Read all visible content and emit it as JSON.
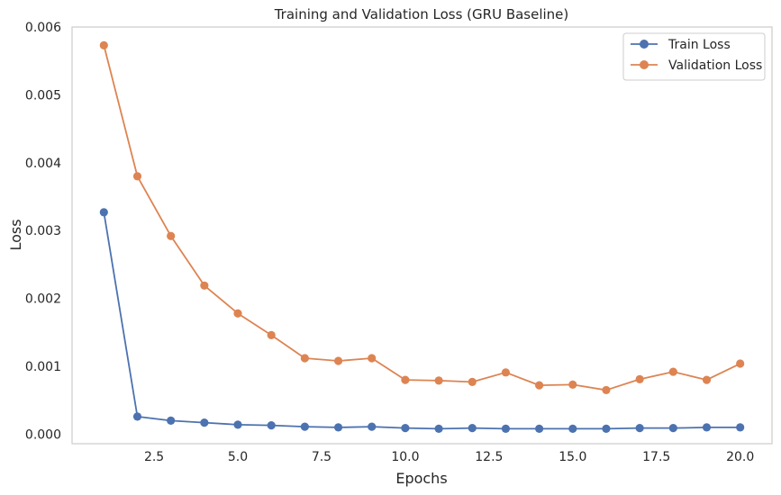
{
  "chart_data": {
    "type": "line",
    "title": "Training and Validation Loss (GRU Baseline)",
    "xlabel": "Epochs",
    "ylabel": "Loss",
    "xlim": [
      0.05,
      20.95
    ],
    "ylim": [
      -0.00014,
      0.006
    ],
    "grid": false,
    "legend_position": "top-right",
    "x": [
      1,
      2,
      3,
      4,
      5,
      6,
      7,
      8,
      9,
      10,
      11,
      12,
      13,
      14,
      15,
      16,
      17,
      18,
      19,
      20
    ],
    "xticks": [
      2.5,
      5.0,
      7.5,
      10.0,
      12.5,
      15.0,
      17.5,
      20.0
    ],
    "xtick_labels": [
      "2.5",
      "5.0",
      "7.5",
      "10.0",
      "12.5",
      "15.0",
      "17.5",
      "20.0"
    ],
    "yticks": [
      0.0,
      0.001,
      0.002,
      0.003,
      0.004,
      0.005,
      0.006
    ],
    "ytick_labels": [
      "0.000",
      "0.001",
      "0.002",
      "0.003",
      "0.004",
      "0.005",
      "0.006"
    ],
    "series": [
      {
        "name": "Train Loss",
        "color": "#4c72b0",
        "values": [
          0.00327,
          0.00026,
          0.0002,
          0.00017,
          0.00014,
          0.00013,
          0.00011,
          0.0001,
          0.00011,
          9e-05,
          8e-05,
          9e-05,
          8e-05,
          8e-05,
          8e-05,
          8e-05,
          9e-05,
          9e-05,
          0.0001,
          0.0001
        ]
      },
      {
        "name": "Validation Loss",
        "color": "#dd8452",
        "values": [
          0.00573,
          0.0038,
          0.00292,
          0.00219,
          0.00178,
          0.00146,
          0.00112,
          0.00108,
          0.00112,
          0.0008,
          0.00079,
          0.00077,
          0.00091,
          0.00072,
          0.00073,
          0.00065,
          0.00081,
          0.00092,
          0.0008,
          0.00104
        ]
      }
    ]
  }
}
